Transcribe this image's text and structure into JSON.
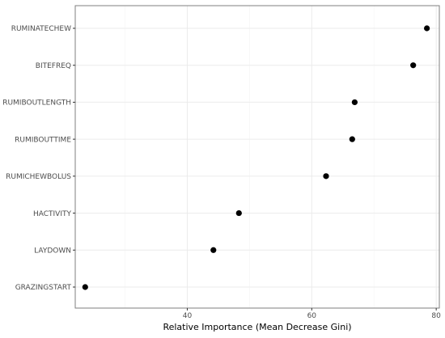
{
  "chart_data": {
    "type": "scatter",
    "title": "",
    "xlabel": "Relative Importance (Mean Decrease Gini)",
    "ylabel": "",
    "xlim": [
      22,
      80.5
    ],
    "xticks": [
      40,
      60,
      80
    ],
    "grid": true,
    "categories": [
      "RUMINATECHEW",
      "BITEFREQ",
      "RUMIBOUTLENGTH",
      "RUMIBOUTTIME",
      "RUMICHEWBOLUS",
      "HACTIVITY",
      "LAYDOWN",
      "GRAZINGSTART"
    ],
    "values": [
      78.5,
      76.3,
      66.9,
      66.5,
      62.3,
      48.3,
      44.2,
      23.6
    ],
    "colors": {
      "point": "#000000",
      "grid": "#ebebeb",
      "border": "#7f7f7f"
    }
  }
}
